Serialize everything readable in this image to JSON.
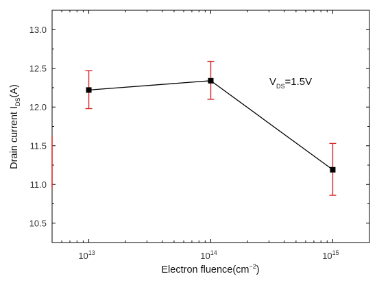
{
  "chart_data": {
    "type": "scatter",
    "xlabel_main": "Electron fluence(cm",
    "xlabel_sup": "−2",
    "xlabel_close": ")",
    "ylabel_main": "Drain current I",
    "ylabel_sub": "DS",
    "ylabel_unit": "(A)",
    "x_scale": "log",
    "xlim": [
      5000000000000.0,
      2000000000000000.0
    ],
    "x_ticks": [
      {
        "base": "10",
        "exp": "13",
        "value": 10000000000000.0
      },
      {
        "base": "10",
        "exp": "14",
        "value": 100000000000000.0
      },
      {
        "base": "10",
        "exp": "15",
        "value": 1000000000000000.0
      }
    ],
    "ylim": [
      10.25,
      13.25
    ],
    "y_ticks": [
      "10.5",
      "11.0",
      "11.5",
      "12.0",
      "12.5",
      "13.0"
    ],
    "grid": false,
    "series": [
      {
        "line": true,
        "marker": "square",
        "color": "#000000",
        "error_color": "#d62728",
        "points": [
          {
            "x": 10000000000000.0,
            "y": 12.22,
            "err_low": 11.98,
            "err_high": 12.47
          },
          {
            "x": 100000000000000.0,
            "y": 12.34,
            "err_low": 12.1,
            "err_high": 12.59
          },
          {
            "x": 1000000000000000.0,
            "y": 11.19,
            "err_low": 10.86,
            "err_high": 11.53
          }
        ]
      }
    ],
    "partial_error_bar": {
      "y_low": 10.95,
      "y_high": 11.62,
      "color": "#d62728"
    },
    "annotation": {
      "main": "V",
      "sub": "DS",
      "rest": "=1.5V"
    }
  }
}
